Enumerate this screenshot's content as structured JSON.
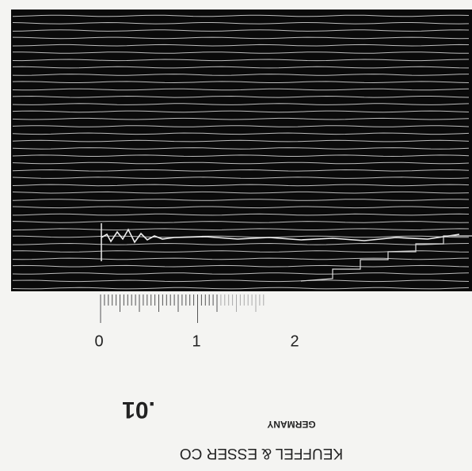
{
  "ruler": {
    "labels": [
      "0",
      "1",
      "2"
    ]
  },
  "stamp": {
    "number": ".01",
    "country": "GERMANY",
    "maker": "KEUFFEL & ESSER CO"
  }
}
